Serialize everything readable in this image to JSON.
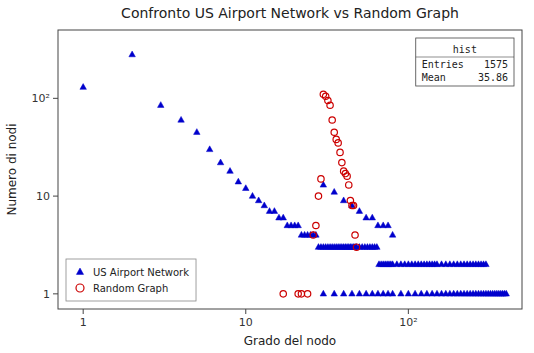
{
  "chart_data": {
    "type": "scatter",
    "title": "Confronto US Airport Network vs Random Graph",
    "x_label": "Grado del nodo",
    "y_label": "Numero di nodi",
    "log": true,
    "grid": false,
    "legend": "lower-left",
    "xlim": [
      0.7,
      500
    ],
    "ylim": [
      0.7,
      500
    ],
    "xticks": [
      1,
      10,
      {
        "value": 100,
        "label": "10²"
      }
    ],
    "yticks": [
      1,
      10,
      {
        "value": 100,
        "label": "10²"
      }
    ],
    "series": [
      {
        "name": "US Airport Network",
        "color": "#0000cc",
        "marker": "triangle",
        "x": [
          1,
          2,
          3,
          4,
          5,
          6,
          7,
          8,
          9,
          10,
          11,
          12,
          13,
          14,
          15,
          16,
          17,
          18,
          19,
          20,
          21,
          22,
          23,
          24,
          25,
          26,
          27,
          28,
          29,
          30,
          31,
          32,
          33,
          34,
          35,
          36,
          37,
          38,
          39,
          40,
          41,
          42,
          43,
          44,
          45,
          46,
          47,
          48,
          50,
          52,
          54,
          56,
          58,
          60,
          62,
          64,
          66,
          68,
          70,
          72,
          74,
          76,
          78,
          80,
          85,
          90,
          95,
          100,
          105,
          110,
          115,
          120,
          125,
          130,
          135,
          140,
          145,
          150,
          160,
          170,
          180,
          190,
          200,
          210,
          220,
          230,
          240,
          250,
          260,
          270,
          280,
          290,
          300,
          30,
          35,
          40,
          45,
          50,
          55,
          60,
          65,
          70,
          75,
          80
        ],
        "values": [
          130,
          280,
          85,
          60,
          45,
          30,
          22,
          18,
          14,
          12,
          10,
          9,
          8,
          7,
          7,
          6,
          6,
          5,
          5,
          5,
          5,
          4,
          4,
          4,
          4,
          4,
          4,
          3,
          3,
          3,
          3,
          3,
          3,
          3,
          3,
          3,
          3,
          3,
          3,
          3,
          3,
          3,
          3,
          3,
          3,
          3,
          3,
          3,
          3,
          3,
          3,
          3,
          3,
          3,
          3,
          3,
          2,
          2,
          2,
          2,
          2,
          2,
          2,
          2,
          2,
          2,
          2,
          2,
          2,
          2,
          2,
          2,
          2,
          2,
          2,
          2,
          2,
          2,
          2,
          2,
          2,
          2,
          2,
          2,
          2,
          2,
          2,
          2,
          2,
          2,
          2,
          2,
          2,
          13,
          11,
          9,
          8,
          7,
          6,
          6,
          5,
          5,
          5,
          4
        ]
      },
      {
        "color": "#0000cc",
        "marker": "triangle",
        "x": [
          30,
          35,
          40,
          45,
          50,
          55,
          60,
          65,
          70,
          75,
          80,
          90,
          100,
          110,
          120,
          130,
          140,
          150,
          160,
          170,
          180,
          190,
          200,
          210,
          220,
          230,
          240,
          250,
          260,
          270,
          280,
          290,
          300,
          310,
          320,
          330,
          340,
          350,
          360,
          370,
          380,
          390,
          400
        ],
        "values": [
          1,
          1,
          1,
          1,
          1,
          1,
          1,
          1,
          1,
          1,
          1,
          1,
          1,
          1,
          1,
          1,
          1,
          1,
          1,
          1,
          1,
          1,
          1,
          1,
          1,
          1,
          1,
          1,
          1,
          1,
          1,
          1,
          1,
          1,
          1,
          1,
          1,
          1,
          1,
          1,
          1,
          1,
          1
        ]
      },
      {
        "name": "Random Graph",
        "color": "#cc0000",
        "marker": "circle",
        "x": [
          17,
          21,
          22,
          24,
          26,
          27,
          28,
          29,
          30,
          31,
          32,
          33,
          34,
          35,
          36,
          37,
          38,
          39,
          40,
          41,
          42,
          43,
          44,
          45,
          46,
          47,
          48
        ],
        "values": [
          1,
          1,
          1,
          1,
          4,
          5,
          10,
          15,
          110,
          105,
          95,
          85,
          60,
          45,
          38,
          35,
          28,
          22,
          18,
          17,
          16,
          13,
          9,
          8,
          8,
          4,
          3
        ]
      }
    ],
    "stats": {
      "title": "hist",
      "rows": [
        {
          "label": "Entries",
          "value": 1575
        },
        {
          "label": "Mean",
          "value": 35.86
        }
      ]
    }
  }
}
